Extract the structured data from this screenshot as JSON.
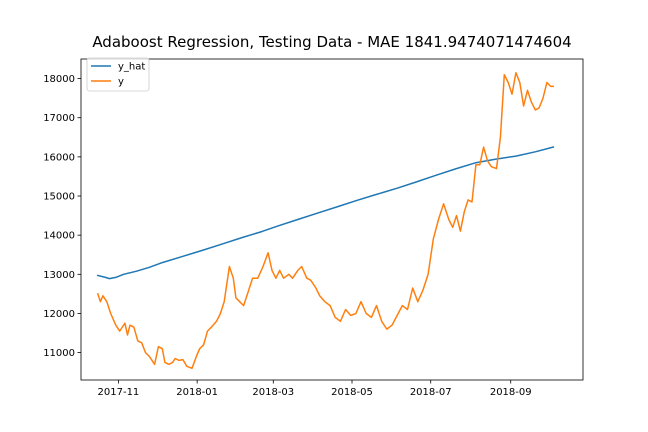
{
  "chart_data": {
    "type": "line",
    "title": "Adaboost Regression, Testing Data - MAE 1841.9474071474604",
    "xlabel": "",
    "ylabel": "",
    "x_type": "date",
    "xlim": [
      "2017-10-03",
      "2018-10-27"
    ],
    "ylim": [
      10300,
      18500
    ],
    "grid": false,
    "legend_position": "upper-left",
    "x_ticks": [
      {
        "date": "2017-11-01",
        "label": "2017-11"
      },
      {
        "date": "2018-01-01",
        "label": "2018-01"
      },
      {
        "date": "2018-03-01",
        "label": "2018-03"
      },
      {
        "date": "2018-05-01",
        "label": "2018-05"
      },
      {
        "date": "2018-07-01",
        "label": "2018-07"
      },
      {
        "date": "2018-09-01",
        "label": "2018-09"
      }
    ],
    "y_ticks": [
      11000,
      12000,
      13000,
      14000,
      15000,
      16000,
      17000,
      18000
    ],
    "series": [
      {
        "name": "y_hat",
        "color": "#1f77b4",
        "x": [
          "2017-10-16",
          "2017-10-22",
          "2017-10-25",
          "2017-10-30",
          "2017-11-05",
          "2017-11-15",
          "2017-11-25",
          "2017-12-05",
          "2017-12-20",
          "2018-01-05",
          "2018-01-20",
          "2018-02-05",
          "2018-02-20",
          "2018-03-05",
          "2018-03-20",
          "2018-04-05",
          "2018-04-20",
          "2018-05-05",
          "2018-05-20",
          "2018-06-05",
          "2018-06-20",
          "2018-07-05",
          "2018-07-20",
          "2018-08-05",
          "2018-08-20",
          "2018-09-05",
          "2018-09-20",
          "2018-10-04"
        ],
        "values": [
          12970,
          12920,
          12890,
          12920,
          13000,
          13080,
          13180,
          13300,
          13450,
          13610,
          13770,
          13940,
          14090,
          14240,
          14400,
          14570,
          14730,
          14890,
          15040,
          15200,
          15360,
          15530,
          15690,
          15850,
          15940,
          16020,
          16130,
          16250
        ]
      },
      {
        "name": "y",
        "color": "#ff7f0e",
        "x": [
          "2017-10-16",
          "2017-10-18",
          "2017-10-20",
          "2017-10-23",
          "2017-10-26",
          "2017-10-30",
          "2017-11-02",
          "2017-11-06",
          "2017-11-08",
          "2017-11-10",
          "2017-11-13",
          "2017-11-16",
          "2017-11-19",
          "2017-11-22",
          "2017-11-25",
          "2017-11-29",
          "2017-12-02",
          "2017-12-05",
          "2017-12-07",
          "2017-12-10",
          "2017-12-13",
          "2017-12-15",
          "2017-12-18",
          "2017-12-21",
          "2017-12-24",
          "2017-12-28",
          "2018-01-01",
          "2018-01-03",
          "2018-01-06",
          "2018-01-09",
          "2018-01-12",
          "2018-01-16",
          "2018-01-19",
          "2018-01-22",
          "2018-01-26",
          "2018-01-29",
          "2018-01-31",
          "2018-02-03",
          "2018-02-06",
          "2018-02-09",
          "2018-02-13",
          "2018-02-17",
          "2018-02-21",
          "2018-02-25",
          "2018-02-28",
          "2018-03-03",
          "2018-03-06",
          "2018-03-09",
          "2018-03-13",
          "2018-03-16",
          "2018-03-20",
          "2018-03-23",
          "2018-03-27",
          "2018-03-30",
          "2018-04-03",
          "2018-04-06",
          "2018-04-10",
          "2018-04-14",
          "2018-04-18",
          "2018-04-22",
          "2018-04-26",
          "2018-04-30",
          "2018-05-04",
          "2018-05-08",
          "2018-05-12",
          "2018-05-16",
          "2018-05-20",
          "2018-05-24",
          "2018-05-28",
          "2018-06-01",
          "2018-06-05",
          "2018-06-09",
          "2018-06-13",
          "2018-06-17",
          "2018-06-21",
          "2018-06-25",
          "2018-06-29",
          "2018-07-03",
          "2018-07-07",
          "2018-07-11",
          "2018-07-15",
          "2018-07-18",
          "2018-07-21",
          "2018-07-24",
          "2018-07-27",
          "2018-07-30",
          "2018-08-02",
          "2018-08-05",
          "2018-08-08",
          "2018-08-11",
          "2018-08-14",
          "2018-08-17",
          "2018-08-21",
          "2018-08-24",
          "2018-08-27",
          "2018-08-30",
          "2018-09-02",
          "2018-09-05",
          "2018-09-08",
          "2018-09-11",
          "2018-09-14",
          "2018-09-17",
          "2018-09-20",
          "2018-09-23",
          "2018-09-26",
          "2018-09-29",
          "2018-10-02",
          "2018-10-04"
        ],
        "values": [
          12500,
          12300,
          12450,
          12300,
          12000,
          11700,
          11550,
          11750,
          11450,
          11700,
          11650,
          11300,
          11250,
          11000,
          10900,
          10700,
          11150,
          11100,
          10750,
          10700,
          10750,
          10850,
          10800,
          10820,
          10650,
          10600,
          10950,
          11100,
          11200,
          11550,
          11650,
          11800,
          12000,
          12300,
          13200,
          12900,
          12400,
          12300,
          12200,
          12500,
          12900,
          12900,
          13200,
          13550,
          13100,
          12900,
          13100,
          12900,
          13000,
          12900,
          13100,
          13200,
          12900,
          12850,
          12650,
          12450,
          12300,
          12200,
          11900,
          11800,
          12100,
          11950,
          12000,
          12300,
          12000,
          11900,
          12200,
          11800,
          11600,
          11700,
          11950,
          12200,
          12100,
          12650,
          12300,
          12600,
          13000,
          13900,
          14400,
          14800,
          14400,
          14200,
          14500,
          14100,
          14600,
          14900,
          14850,
          15800,
          15800,
          16250,
          15900,
          15750,
          15700,
          16500,
          18100,
          17900,
          17600,
          18150,
          17900,
          17300,
          17700,
          17400,
          17200,
          17250,
          17500,
          17900,
          17800,
          17800
        ]
      }
    ]
  }
}
